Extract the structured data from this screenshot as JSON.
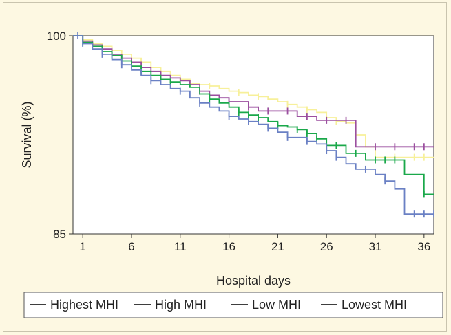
{
  "chart_data": {
    "type": "line",
    "subtype": "kaplan-meier step",
    "xlabel": "Hospital days",
    "ylabel": "Survival (%)",
    "xlim": [
      0,
      37
    ],
    "ylim": [
      85,
      100
    ],
    "xticks": [
      1,
      6,
      11,
      16,
      21,
      26,
      31,
      36
    ],
    "yticks": [
      85,
      100
    ],
    "grid": false,
    "legend_position": "bottom",
    "series": [
      {
        "name": "Highest MHI",
        "color": "#f7f09a",
        "steps": [
          [
            0,
            100
          ],
          [
            1,
            99.7
          ],
          [
            2,
            99.4
          ],
          [
            3,
            99.2
          ],
          [
            4,
            98.9
          ],
          [
            5,
            98.6
          ],
          [
            6,
            98.3
          ],
          [
            7,
            98.0
          ],
          [
            8,
            97.6
          ],
          [
            9,
            97.3
          ],
          [
            10,
            97.0
          ],
          [
            11,
            96.7
          ],
          [
            12,
            96.4
          ],
          [
            13,
            96.3
          ],
          [
            14,
            96.2
          ],
          [
            15,
            96.0
          ],
          [
            16,
            95.8
          ],
          [
            17,
            95.7
          ],
          [
            18,
            95.5
          ],
          [
            19,
            95.4
          ],
          [
            20,
            95.2
          ],
          [
            21,
            95.0
          ],
          [
            22,
            94.8
          ],
          [
            23,
            94.6
          ],
          [
            24,
            94.4
          ],
          [
            25,
            94.2
          ],
          [
            26,
            93.8
          ],
          [
            27,
            93.5
          ],
          [
            28,
            93.4
          ],
          [
            29,
            92.5
          ],
          [
            30,
            91.6
          ],
          [
            31,
            90.8
          ],
          [
            37,
            90.8
          ]
        ],
        "censored": [
          [
            2,
            99.4
          ],
          [
            4,
            98.9
          ],
          [
            7,
            98.0
          ],
          [
            9,
            97.3
          ],
          [
            12,
            96.4
          ],
          [
            14,
            96.2
          ],
          [
            17,
            95.7
          ],
          [
            19,
            95.4
          ],
          [
            22,
            94.8
          ],
          [
            24,
            94.4
          ],
          [
            27,
            93.5
          ],
          [
            33,
            90.8
          ],
          [
            35,
            90.8
          ],
          [
            36,
            90.8
          ]
        ]
      },
      {
        "name": "High MHI",
        "color": "#9b4f9f",
        "steps": [
          [
            0,
            100
          ],
          [
            1,
            99.6
          ],
          [
            2,
            99.3
          ],
          [
            3,
            99.0
          ],
          [
            4,
            98.6
          ],
          [
            5,
            98.3
          ],
          [
            6,
            98.0
          ],
          [
            7,
            97.6
          ],
          [
            8,
            97.3
          ],
          [
            9,
            97.0
          ],
          [
            10,
            96.8
          ],
          [
            11,
            96.6
          ],
          [
            12,
            96.3
          ],
          [
            13,
            95.8
          ],
          [
            14,
            95.5
          ],
          [
            15,
            95.3
          ],
          [
            16,
            95.0
          ],
          [
            18,
            94.6
          ],
          [
            19,
            94.3
          ],
          [
            23,
            93.9
          ],
          [
            25,
            93.6
          ],
          [
            29,
            91.6
          ],
          [
            37,
            91.6
          ]
        ],
        "censored": [
          [
            3,
            99.0
          ],
          [
            6,
            98.0
          ],
          [
            9,
            97.0
          ],
          [
            13,
            95.8
          ],
          [
            16,
            95.0
          ],
          [
            18,
            94.6
          ],
          [
            20,
            94.3
          ],
          [
            22,
            94.3
          ],
          [
            24,
            93.9
          ],
          [
            26,
            93.6
          ],
          [
            28,
            93.6
          ],
          [
            31,
            91.6
          ],
          [
            33,
            91.6
          ],
          [
            35,
            91.6
          ],
          [
            36,
            91.6
          ]
        ]
      },
      {
        "name": "Low MHI",
        "color": "#1aa84a",
        "steps": [
          [
            0,
            100
          ],
          [
            1,
            99.5
          ],
          [
            2,
            99.2
          ],
          [
            3,
            98.8
          ],
          [
            4,
            98.5
          ],
          [
            5,
            98.1
          ],
          [
            6,
            97.7
          ],
          [
            7,
            97.3
          ],
          [
            8,
            97.0
          ],
          [
            9,
            96.7
          ],
          [
            10,
            96.5
          ],
          [
            11,
            96.3
          ],
          [
            12,
            96.1
          ],
          [
            13,
            95.6
          ],
          [
            14,
            95.2
          ],
          [
            15,
            94.9
          ],
          [
            16,
            94.6
          ],
          [
            17,
            94.2
          ],
          [
            18,
            94.0
          ],
          [
            19,
            93.8
          ],
          [
            20,
            93.5
          ],
          [
            21,
            93.2
          ],
          [
            22,
            93.1
          ],
          [
            23,
            92.9
          ],
          [
            24,
            92.6
          ],
          [
            25,
            92.2
          ],
          [
            26,
            91.7
          ],
          [
            28,
            91.1
          ],
          [
            30,
            90.6
          ],
          [
            34,
            89.5
          ],
          [
            36,
            88.0
          ],
          [
            37,
            88.0
          ]
        ],
        "censored": [
          [
            1,
            99.5
          ],
          [
            4,
            98.5
          ],
          [
            7,
            97.3
          ],
          [
            10,
            96.5
          ],
          [
            14,
            95.2
          ],
          [
            17,
            94.2
          ],
          [
            18,
            94.0
          ],
          [
            19,
            93.8
          ],
          [
            21,
            93.2
          ],
          [
            23,
            92.9
          ],
          [
            24,
            92.6
          ],
          [
            25,
            92.2
          ],
          [
            27,
            91.7
          ],
          [
            29,
            91.1
          ],
          [
            31,
            90.6
          ],
          [
            32,
            90.6
          ],
          [
            33,
            90.6
          ],
          [
            36,
            88.0
          ]
        ]
      },
      {
        "name": "Lowest MHI",
        "color": "#6a80c4",
        "steps": [
          [
            0,
            100
          ],
          [
            1,
            99.4
          ],
          [
            2,
            99.0
          ],
          [
            3,
            98.6
          ],
          [
            4,
            98.2
          ],
          [
            5,
            97.8
          ],
          [
            6,
            97.4
          ],
          [
            7,
            97.0
          ],
          [
            8,
            96.6
          ],
          [
            9,
            96.3
          ],
          [
            10,
            96.0
          ],
          [
            11,
            95.8
          ],
          [
            12,
            95.3
          ],
          [
            13,
            94.9
          ],
          [
            14,
            94.6
          ],
          [
            15,
            94.3
          ],
          [
            16,
            93.9
          ],
          [
            17,
            93.7
          ],
          [
            18,
            93.5
          ],
          [
            19,
            93.3
          ],
          [
            20,
            93.0
          ],
          [
            21,
            92.7
          ],
          [
            22,
            92.3
          ],
          [
            24,
            92.0
          ],
          [
            25,
            91.8
          ],
          [
            26,
            91.3
          ],
          [
            27,
            90.8
          ],
          [
            28,
            90.3
          ],
          [
            29,
            89.9
          ],
          [
            31,
            89.5
          ],
          [
            32,
            89.0
          ],
          [
            33,
            88.4
          ],
          [
            34,
            86.5
          ],
          [
            37,
            86.5
          ]
        ],
        "censored": [
          [
            0.5,
            100
          ],
          [
            1,
            99.4
          ],
          [
            3,
            98.6
          ],
          [
            5,
            97.8
          ],
          [
            8,
            96.6
          ],
          [
            11,
            95.8
          ],
          [
            13,
            94.9
          ],
          [
            16,
            93.9
          ],
          [
            18,
            93.5
          ],
          [
            20,
            93.0
          ],
          [
            22,
            92.3
          ],
          [
            24,
            92.0
          ],
          [
            26,
            91.3
          ],
          [
            27,
            90.8
          ],
          [
            30,
            89.9
          ],
          [
            32,
            89.0
          ],
          [
            35,
            86.5
          ],
          [
            36,
            86.5
          ],
          [
            37,
            86.5
          ]
        ]
      }
    ]
  }
}
